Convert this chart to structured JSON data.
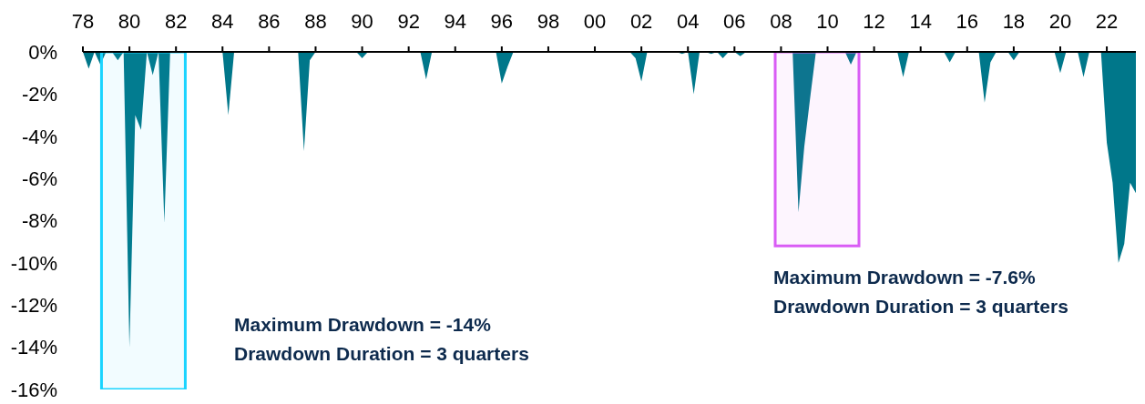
{
  "chart_data": {
    "type": "area",
    "x": [
      1978.0,
      1978.25,
      1978.5,
      1978.75,
      1979.0,
      1979.25,
      1979.5,
      1979.75,
      1980.0,
      1980.25,
      1980.5,
      1980.75,
      1981.0,
      1981.25,
      1981.5,
      1981.75,
      1984.0,
      1984.25,
      1984.5,
      1987.25,
      1987.5,
      1987.75,
      1988.0,
      1989.75,
      1990.0,
      1990.25,
      1992.5,
      1992.75,
      1993.0,
      1995.75,
      1996.0,
      1996.25,
      1996.5,
      2001.5,
      2001.75,
      2002.0,
      2002.25,
      2003.5,
      2003.75,
      2004.0,
      2004.25,
      2004.5,
      2004.75,
      2005.0,
      2005.25,
      2005.5,
      2005.75,
      2006.0,
      2006.25,
      2006.5,
      2008.5,
      2008.75,
      2009.0,
      2009.25,
      2009.5,
      2010.75,
      2011.0,
      2011.25,
      2013.0,
      2013.25,
      2013.5,
      2015.0,
      2015.25,
      2015.5,
      2016.5,
      2016.75,
      2017.0,
      2017.25,
      2017.75,
      2018.0,
      2018.25,
      2019.75,
      2020.0,
      2020.25,
      2020.75,
      2021.0,
      2021.25,
      2021.75,
      2022.0,
      2022.25,
      2022.5,
      2022.75,
      2023.0,
      2023.25
    ],
    "series": [
      {
        "color": "#00778a",
        "values": [
          0,
          -0.8,
          0,
          -0.6,
          0,
          0,
          -0.4,
          0,
          -14,
          -3.0,
          -3.7,
          0,
          -1.1,
          0,
          -8.1,
          0,
          0,
          -3.0,
          0,
          0,
          -4.7,
          -0.4,
          0,
          0,
          -0.3,
          0,
          0,
          -1.3,
          0,
          0,
          -1.5,
          -0.7,
          0,
          0,
          -0.3,
          -1.4,
          0,
          0,
          -0.1,
          0,
          -2.0,
          0,
          0,
          -0.1,
          0,
          -0.3,
          0,
          0,
          -0.2,
          0,
          0,
          -7.6,
          -4.5,
          -2.2,
          0,
          0,
          -0.6,
          0,
          0,
          -1.2,
          0,
          0,
          -0.5,
          0,
          0,
          -2.4,
          -0.5,
          0,
          0,
          -0.4,
          0,
          0,
          -1.0,
          0,
          0,
          -1.2,
          0,
          0,
          -4.3,
          -6.2,
          -10.0,
          -9.1,
          -6.2,
          -6.7
        ]
      }
    ],
    "xlim": [
      1978,
      2023.25
    ],
    "xticks": [
      {
        "value": 1978,
        "label": "78"
      },
      {
        "value": 1980,
        "label": "80"
      },
      {
        "value": 1982,
        "label": "82"
      },
      {
        "value": 1984,
        "label": "84"
      },
      {
        "value": 1986,
        "label": "86"
      },
      {
        "value": 1988,
        "label": "88"
      },
      {
        "value": 1990,
        "label": "90"
      },
      {
        "value": 1992,
        "label": "92"
      },
      {
        "value": 1994,
        "label": "94"
      },
      {
        "value": 1996,
        "label": "96"
      },
      {
        "value": 1998,
        "label": "98"
      },
      {
        "value": 2000,
        "label": "00"
      },
      {
        "value": 2002,
        "label": "02"
      },
      {
        "value": 2004,
        "label": "04"
      },
      {
        "value": 2006,
        "label": "06"
      },
      {
        "value": 2008,
        "label": "08"
      },
      {
        "value": 2010,
        "label": "10"
      },
      {
        "value": 2012,
        "label": "12"
      },
      {
        "value": 2014,
        "label": "14"
      },
      {
        "value": 2016,
        "label": "16"
      },
      {
        "value": 2018,
        "label": "18"
      },
      {
        "value": 2020,
        "label": "20"
      },
      {
        "value": 2022,
        "label": "22"
      }
    ],
    "ylim": [
      -16,
      0
    ],
    "yticks": [
      {
        "value": 0,
        "label": "0%"
      },
      {
        "value": -2,
        "label": "-2%"
      },
      {
        "value": -4,
        "label": "-4%"
      },
      {
        "value": -6,
        "label": "-6%"
      },
      {
        "value": -8,
        "label": "-8%"
      },
      {
        "value": -10,
        "label": "-10%"
      },
      {
        "value": -12,
        "label": "-12%"
      },
      {
        "value": -14,
        "label": "-14%"
      },
      {
        "value": -16,
        "label": "-16%"
      }
    ],
    "bands": [
      {
        "axis": "x",
        "from": 1978.8,
        "to": 1982.4,
        "color": "#1ad4ff"
      },
      {
        "axis": "x",
        "from": 2007.75,
        "to": 2011.35,
        "color": "#d95cf5"
      }
    ],
    "annotations": [
      "Maximum Drawdown = -14%\nDrawdown Duration = 3 quarters",
      "Maximum Drawdown = -7.6%\nDrawdown Duration = 3 quarters"
    ],
    "grid": false,
    "legend": false
  }
}
